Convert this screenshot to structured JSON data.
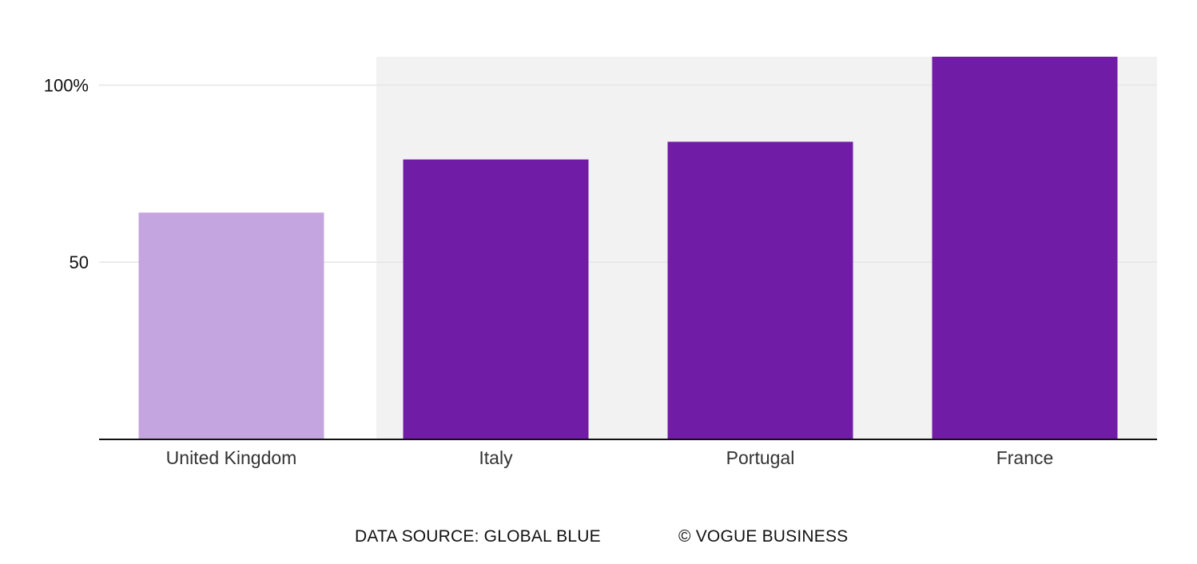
{
  "chart_data": {
    "type": "bar",
    "categories": [
      "United Kingdom",
      "Italy",
      "Portugal",
      "France"
    ],
    "values": [
      64,
      79,
      84,
      108
    ],
    "ylim": [
      0,
      108
    ],
    "yticks": [
      {
        "value": 50,
        "label": "50"
      },
      {
        "value": 100,
        "label": "100%"
      }
    ],
    "grid": true,
    "highlight_region": {
      "from_category": "Italy",
      "to_category": "France",
      "color": "#f2f2f2"
    },
    "colors": {
      "default_bar": "#711ca7",
      "muted_bar": "#c5a5df",
      "grid": "#e6e6e6",
      "axis": "#111111"
    },
    "bar_colors": [
      "#c5a5df",
      "#711ca7",
      "#711ca7",
      "#711ca7"
    ]
  },
  "footer": {
    "source": "DATA SOURCE: GLOBAL BLUE",
    "copyright": "© VOGUE BUSINESS"
  }
}
